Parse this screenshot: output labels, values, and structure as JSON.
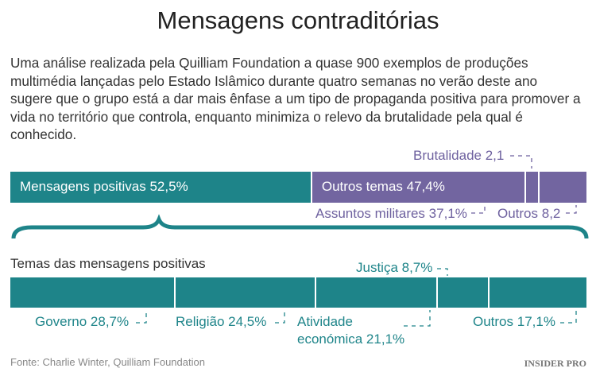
{
  "title": "Mensagens contraditórias",
  "intro": "Uma análise realizada pela Quilliam Foundation a quase 900 exemplos de produções multimédia lançadas pelo Estado Islâmico durante quatro semanas no verão deste ano sugere que o grupo está a dar mais ênfase a um tipo de propaganda positiva para promover a vida no território que controla, enquanto minimiza o relevo da brutalidade pela qual é conhecido.",
  "colors": {
    "positive": "#1e8489",
    "other": "#7265a0"
  },
  "chart_data": [
    {
      "type": "bar",
      "orientation": "horizontal-stacked",
      "categories": [
        "Mensagens positivas",
        "Assuntos militares",
        "Brutalidade",
        "Outros"
      ],
      "values": [
        52.5,
        37.1,
        2.1,
        8.2
      ],
      "labels": {
        "positive": "Mensagens positivas 52,5%",
        "others": "Outros temas 47,4%",
        "military": "Assuntos militares 37,1%",
        "brutality": "Brutalidade 2,1",
        "other": "Outros 8,2"
      }
    },
    {
      "type": "bar",
      "orientation": "horizontal-stacked",
      "title": "Temas das mensagens positivas",
      "categories": [
        "Governo",
        "Religião",
        "Atividade económica",
        "Justiça",
        "Outros"
      ],
      "values": [
        28.7,
        24.5,
        21.1,
        8.7,
        17.1
      ],
      "labels": {
        "gov": "Governo 28,7%",
        "rel": "Religião 24,5%",
        "eco1": "Atividade",
        "eco2": "económica 21,1%",
        "jus": "Justiça 8,7%",
        "out": "Outros 17,1%"
      }
    }
  ],
  "source": "Fonte: Charlie Winter, Quilliam Foundation",
  "logo": "INSIDER PRO"
}
